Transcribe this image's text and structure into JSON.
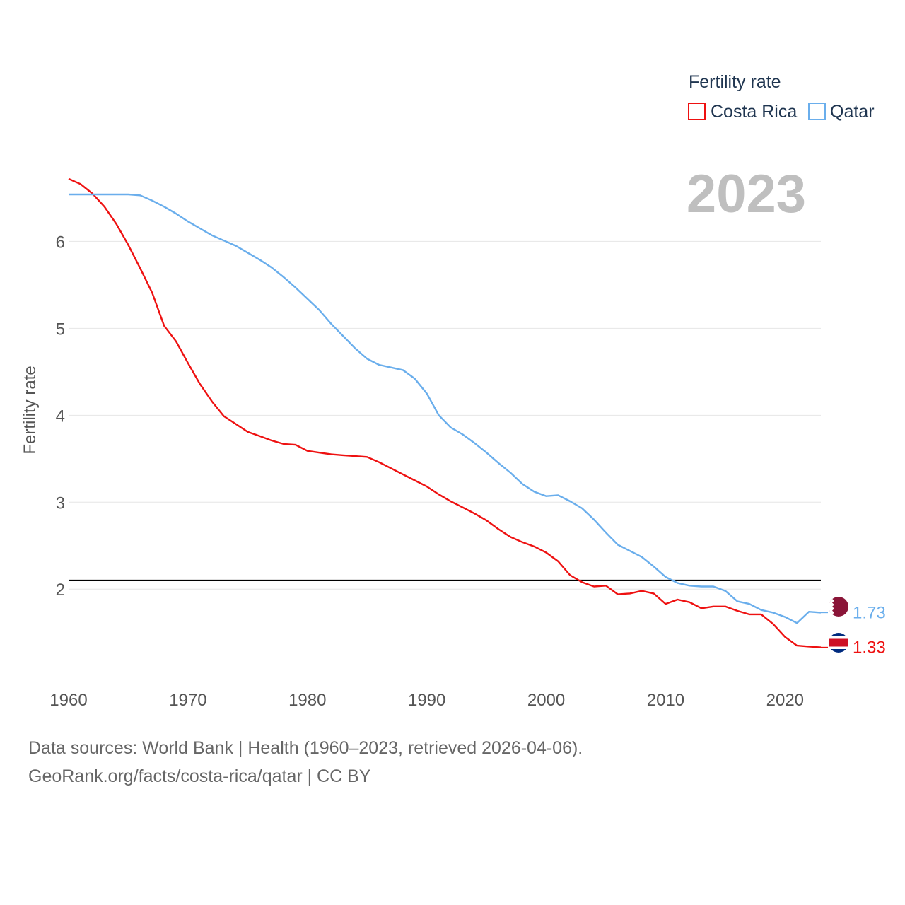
{
  "chart_data": {
    "type": "line",
    "legend_title": "Fertility rate",
    "ylabel": "Fertility rate",
    "year_label": "2023",
    "x_ticks": [
      1960,
      1970,
      1980,
      1990,
      2000,
      2010,
      2020
    ],
    "y_ticks": [
      2,
      3,
      4,
      5,
      6
    ],
    "xlim": [
      1960,
      2023
    ],
    "ylim": [
      0.985,
      6.76
    ],
    "reference_line": 2.1,
    "grid": true,
    "legend_position": "top-right",
    "series": [
      {
        "name": "Costa Rica",
        "color": "#ee1111",
        "end_label": "1.33",
        "x": [
          1960,
          1961,
          1962,
          1963,
          1964,
          1965,
          1966,
          1967,
          1968,
          1969,
          1970,
          1971,
          1972,
          1973,
          1974,
          1975,
          1976,
          1977,
          1978,
          1979,
          1980,
          1981,
          1982,
          1983,
          1984,
          1985,
          1986,
          1987,
          1988,
          1989,
          1990,
          1991,
          1992,
          1993,
          1994,
          1995,
          1996,
          1997,
          1998,
          1999,
          2000,
          2001,
          2002,
          2003,
          2004,
          2005,
          2006,
          2007,
          2008,
          2009,
          2010,
          2011,
          2012,
          2013,
          2014,
          2015,
          2016,
          2017,
          2018,
          2019,
          2020,
          2021,
          2022,
          2023
        ],
        "values": [
          6.72,
          6.66,
          6.55,
          6.4,
          6.2,
          5.96,
          5.69,
          5.41,
          5.03,
          4.85,
          4.6,
          4.36,
          4.16,
          3.99,
          3.9,
          3.81,
          3.76,
          3.71,
          3.67,
          3.66,
          3.59,
          3.57,
          3.55,
          3.54,
          3.53,
          3.52,
          3.46,
          3.39,
          3.32,
          3.25,
          3.18,
          3.09,
          3.01,
          2.94,
          2.87,
          2.79,
          2.69,
          2.6,
          2.54,
          2.49,
          2.42,
          2.32,
          2.16,
          2.08,
          2.03,
          2.04,
          1.94,
          1.95,
          1.98,
          1.95,
          1.83,
          1.88,
          1.85,
          1.78,
          1.8,
          1.8,
          1.75,
          1.71,
          1.71,
          1.6,
          1.45,
          1.35,
          1.34,
          1.33
        ]
      },
      {
        "name": "Qatar",
        "color": "#6aaeec",
        "end_label": "1.73",
        "x": [
          1960,
          1961,
          1962,
          1963,
          1964,
          1965,
          1966,
          1967,
          1968,
          1969,
          1970,
          1971,
          1972,
          1973,
          1974,
          1975,
          1976,
          1977,
          1978,
          1979,
          1980,
          1981,
          1982,
          1983,
          1984,
          1985,
          1986,
          1987,
          1988,
          1989,
          1990,
          1991,
          1992,
          1993,
          1994,
          1995,
          1996,
          1997,
          1998,
          1999,
          2000,
          2001,
          2002,
          2003,
          2004,
          2005,
          2006,
          2007,
          2008,
          2009,
          2010,
          2011,
          2012,
          2013,
          2014,
          2015,
          2016,
          2017,
          2018,
          2019,
          2020,
          2021,
          2022,
          2023
        ],
        "values": [
          6.54,
          6.54,
          6.54,
          6.54,
          6.54,
          6.54,
          6.53,
          6.47,
          6.4,
          6.32,
          6.23,
          6.15,
          6.07,
          6.01,
          5.95,
          5.87,
          5.79,
          5.7,
          5.59,
          5.47,
          5.34,
          5.21,
          5.05,
          4.91,
          4.77,
          4.65,
          4.58,
          4.55,
          4.52,
          4.42,
          4.25,
          4.0,
          3.86,
          3.78,
          3.68,
          3.57,
          3.45,
          3.34,
          3.21,
          3.12,
          3.07,
          3.08,
          3.01,
          2.93,
          2.8,
          2.65,
          2.51,
          2.44,
          2.37,
          2.26,
          2.14,
          2.07,
          2.04,
          2.03,
          2.03,
          1.98,
          1.86,
          1.83,
          1.76,
          1.73,
          1.68,
          1.61,
          1.74,
          1.73
        ]
      }
    ]
  },
  "footer": {
    "sources": "Data sources: World Bank | Health (1960–2023, retrieved 2026-04-06).",
    "link": "GeoRank.org/facts/costa-rica/qatar | CC BY"
  }
}
